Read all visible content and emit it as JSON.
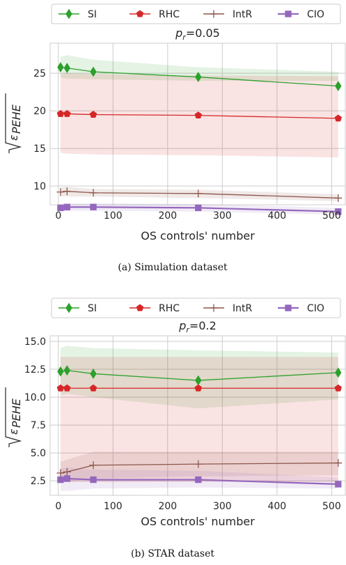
{
  "chart_data": [
    {
      "type": "line",
      "title": "p_r=0.05",
      "title_var": "p",
      "title_sub": "r",
      "title_rest": "=0.05",
      "xlabel": "OS controls' number",
      "ylabel": "√ε_PEHE",
      "caption": "(a)  Simulation dataset",
      "xlim": [
        -15,
        525
      ],
      "ylim": [
        7.5,
        29
      ],
      "xticks": [
        "0",
        "100",
        "200",
        "300",
        "400",
        "500"
      ],
      "xtick_values": [
        0,
        100,
        200,
        300,
        400,
        500
      ],
      "yticks": [
        "10",
        "15",
        "20",
        "25"
      ],
      "ytick_values": [
        10,
        15,
        20,
        25
      ],
      "grid": true,
      "legend_position": "top",
      "x": [
        4,
        16,
        64,
        256,
        512
      ],
      "series": [
        {
          "name": "SI",
          "color": "#2ca02c",
          "marker": "diamond",
          "values": [
            25.8,
            25.7,
            25.2,
            24.5,
            23.3
          ],
          "band_low": [
            24.4,
            24.3,
            24.2,
            24.0,
            24.0
          ],
          "band_high": [
            27.2,
            27.4,
            26.8,
            25.8,
            25.2
          ]
        },
        {
          "name": "RHC",
          "color": "#d62728",
          "marker": "pentagon",
          "values": [
            19.6,
            19.6,
            19.5,
            19.4,
            19.0
          ],
          "band_low": [
            14.4,
            14.3,
            14.2,
            14.1,
            13.8
          ],
          "band_high": [
            24.9,
            25.0,
            24.9,
            24.7,
            24.6
          ]
        },
        {
          "name": "IntR",
          "color": "#8c564b",
          "marker": "plus",
          "values": [
            9.2,
            9.3,
            9.1,
            9.0,
            8.4
          ],
          "band_low": [
            8.6,
            8.6,
            8.6,
            8.4,
            8.0
          ],
          "band_high": [
            9.8,
            9.9,
            9.6,
            9.5,
            8.9
          ]
        },
        {
          "name": "CIO",
          "color": "#9467bd",
          "marker": "square",
          "values": [
            7.1,
            7.2,
            7.2,
            7.1,
            6.6
          ],
          "band_low": [
            6.6,
            6.7,
            6.7,
            6.6,
            6.2
          ],
          "band_high": [
            7.6,
            7.7,
            7.7,
            7.6,
            7.1
          ]
        }
      ]
    },
    {
      "type": "line",
      "title": "p_r=0.2",
      "title_var": "p",
      "title_sub": "r",
      "title_rest": "=0.2",
      "xlabel": "OS controls' number",
      "ylabel": "√ε_PEHE",
      "caption": "(b)  STAR dataset",
      "xlim": [
        -15,
        525
      ],
      "ylim": [
        1.2,
        15.5
      ],
      "xticks": [
        "0",
        "100",
        "200",
        "300",
        "400",
        "500"
      ],
      "xtick_values": [
        0,
        100,
        200,
        300,
        400,
        500
      ],
      "yticks": [
        "2.5",
        "5.0",
        "7.5",
        "10.0",
        "12.5",
        "15.0"
      ],
      "ytick_values": [
        2.5,
        5.0,
        7.5,
        10.0,
        12.5,
        15.0
      ],
      "grid": true,
      "legend_position": "top",
      "x": [
        4,
        16,
        64,
        256,
        512
      ],
      "series": [
        {
          "name": "SI",
          "color": "#2ca02c",
          "marker": "diamond",
          "values": [
            12.3,
            12.4,
            12.1,
            11.5,
            12.2
          ],
          "band_low": [
            10.2,
            10.3,
            10.0,
            9.0,
            9.8
          ],
          "band_high": [
            14.4,
            14.6,
            14.4,
            14.2,
            14.0
          ]
        },
        {
          "name": "RHC",
          "color": "#d62728",
          "marker": "pentagon",
          "values": [
            10.8,
            10.8,
            10.8,
            10.8,
            10.8
          ],
          "band_low": [
            2.4,
            2.4,
            2.4,
            2.4,
            2.4
          ],
          "band_high": [
            13.6,
            13.6,
            13.6,
            13.6,
            13.6
          ]
        },
        {
          "name": "IntR",
          "color": "#8c564b",
          "marker": "plus",
          "values": [
            3.2,
            3.3,
            3.9,
            4.0,
            4.1
          ],
          "band_low": [
            2.4,
            2.4,
            2.7,
            2.9,
            3.0
          ],
          "band_high": [
            4.2,
            4.4,
            5.1,
            5.1,
            5.1
          ]
        },
        {
          "name": "CIO",
          "color": "#9467bd",
          "marker": "square",
          "values": [
            2.6,
            2.7,
            2.6,
            2.6,
            2.2
          ],
          "band_low": [
            1.6,
            1.6,
            1.8,
            1.9,
            1.8
          ],
          "band_high": [
            3.6,
            3.7,
            3.5,
            3.4,
            2.8
          ]
        }
      ]
    }
  ]
}
